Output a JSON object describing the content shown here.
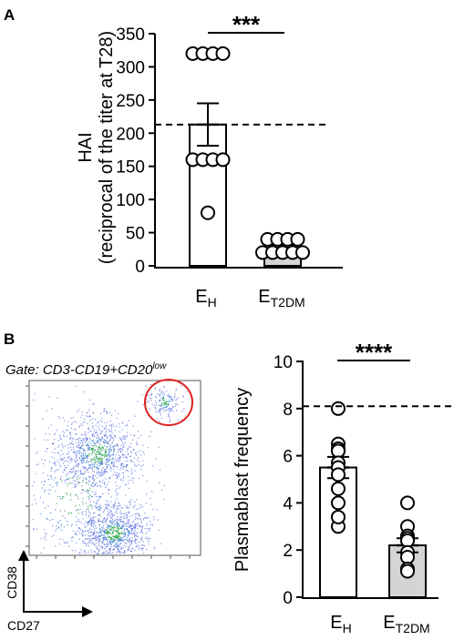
{
  "panels": {
    "a": {
      "label": "A"
    },
    "b": {
      "label": "B"
    }
  },
  "chart_data": [
    {
      "type": "bar",
      "panel": "A",
      "ylabel_line1": "HAI",
      "ylabel_line2": "(reciprocal of the titer at T28)",
      "yticks": [
        "0",
        "50",
        "100",
        "150",
        "200",
        "250",
        "300",
        "350"
      ],
      "ylim": [
        0,
        350
      ],
      "categories": [
        {
          "main": "E",
          "sub": "H"
        },
        {
          "main": "E",
          "sub": "T2DM"
        }
      ],
      "means": [
        213,
        27
      ],
      "sem": [
        32,
        4
      ],
      "bar_colors": [
        "#ffffff",
        "#d4d4d4"
      ],
      "points": [
        [
          320,
          320,
          320,
          320,
          160,
          160,
          160,
          160,
          80
        ],
        [
          40,
          40,
          40,
          40,
          20,
          20,
          20,
          20,
          20
        ]
      ],
      "threshold": 213,
      "threshold_style": "dashed",
      "significance": "***"
    },
    {
      "type": "bar",
      "panel": "B",
      "ylabel": "Plasmablast frequency",
      "yticks": [
        "0",
        "2",
        "4",
        "6",
        "8",
        "10"
      ],
      "ylim": [
        0,
        10
      ],
      "categories": [
        {
          "main": "E",
          "sub": "H"
        },
        {
          "main": "E",
          "sub": "T2DM"
        }
      ],
      "means": [
        5.5,
        2.2
      ],
      "sem": [
        0.45,
        0.3
      ],
      "bar_colors": [
        "#ffffff",
        "#d4d4d4"
      ],
      "points": [
        [
          8.0,
          6.5,
          6.3,
          6.2,
          5.7,
          5.5,
          5.2,
          4.6,
          4.0,
          3.4,
          3.0
        ],
        [
          4.0,
          3.0,
          2.6,
          2.5,
          2.4,
          1.9,
          1.7,
          1.2,
          1.1
        ]
      ],
      "threshold": 8.1,
      "threshold_style": "dashed",
      "significance": "****"
    }
  ],
  "flow_plot": {
    "gate_label": "Gate: CD3-CD19+CD20",
    "gate_superscript": "low",
    "y_axis_label": "CD38",
    "x_axis_label": "CD27",
    "gate_circle_color": "#e02020"
  }
}
